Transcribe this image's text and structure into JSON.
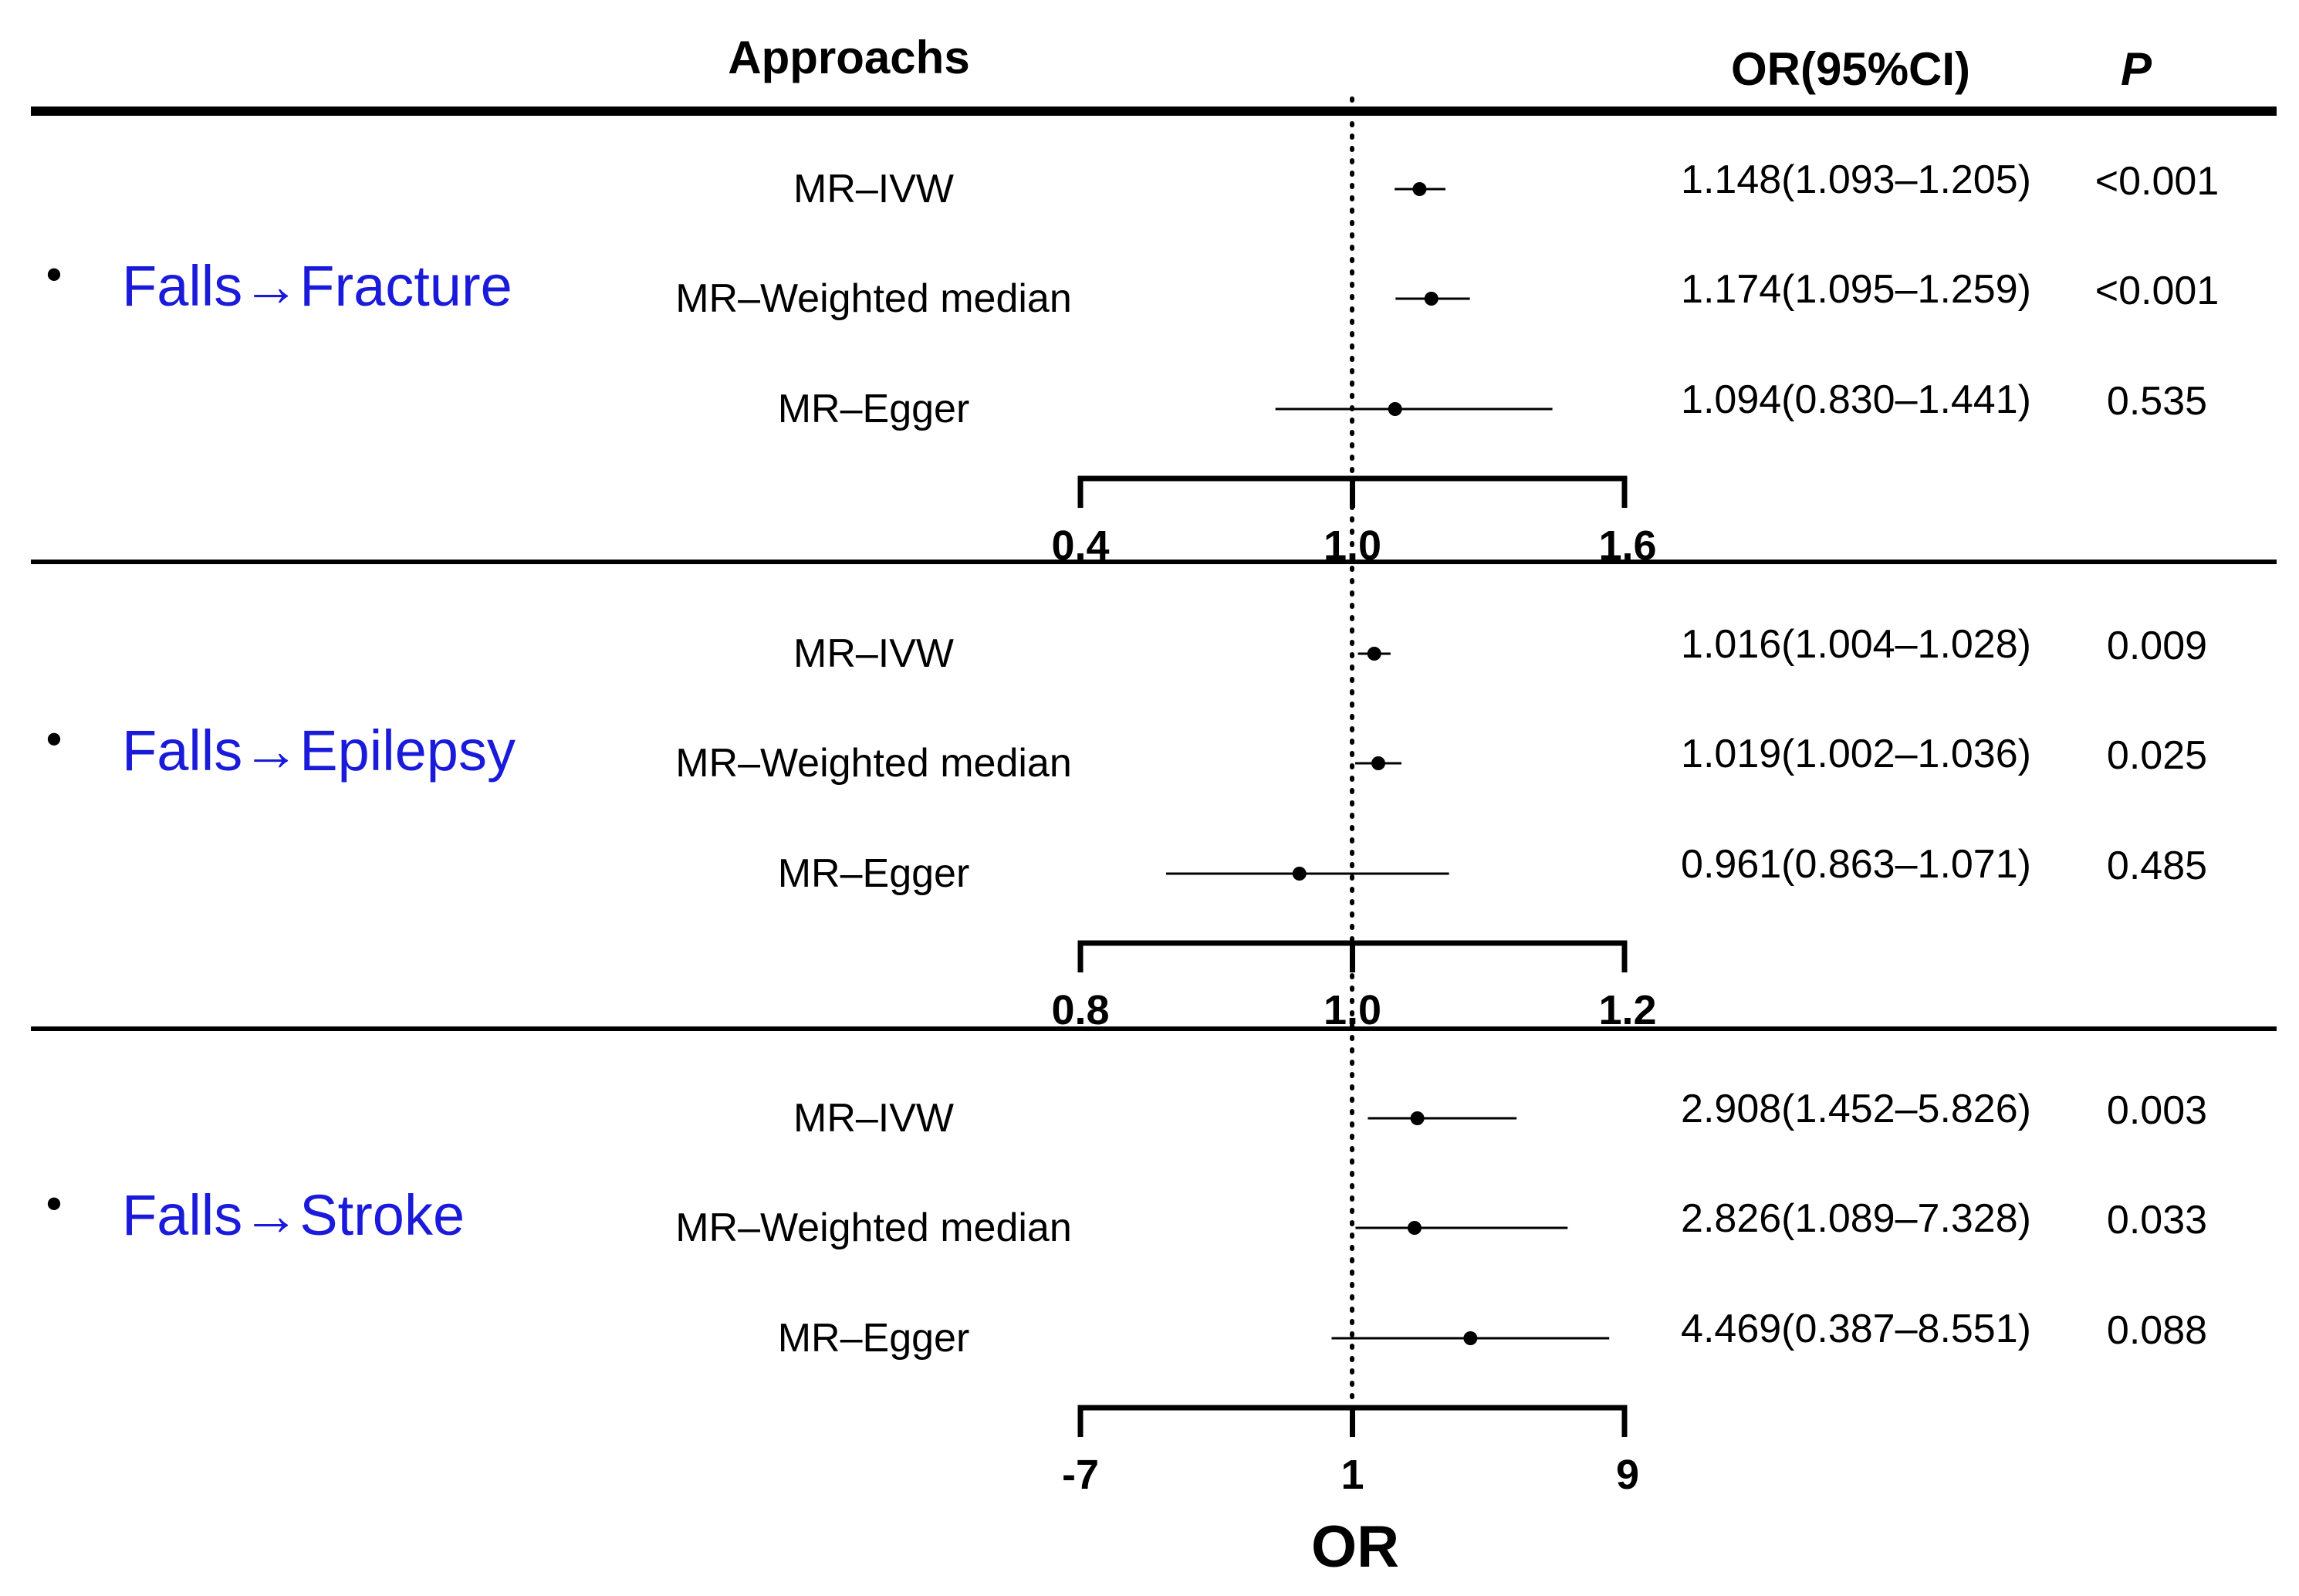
{
  "chart_data": {
    "type": "forest",
    "headers": {
      "approaches": "Approachs",
      "or_ci": "OR(95%CI)",
      "p": "P"
    },
    "xlabel": "OR",
    "colors": {
      "group_label": "#1a1adb",
      "ink": "#000000"
    },
    "groups": [
      {
        "label": "Falls→Fracture",
        "axis": {
          "min": 0.4,
          "max": 1.6,
          "ticks": [
            "0.4",
            "1.0",
            "1.6"
          ],
          "reference": 1.0
        },
        "rows": [
          {
            "method": "MR–IVW",
            "or": 1.148,
            "lower": 1.093,
            "upper": 1.205,
            "or_text": "1.148(1.093–1.205)",
            "p_text": "<0.001"
          },
          {
            "method": "MR–Weighted median",
            "or": 1.174,
            "lower": 1.095,
            "upper": 1.259,
            "or_text": "1.174(1.095–1.259)",
            "p_text": "<0.001"
          },
          {
            "method": "MR–Egger",
            "or": 1.094,
            "lower": 0.83,
            "upper": 1.441,
            "or_text": "1.094(0.830–1.441)",
            "p_text": "0.535"
          }
        ]
      },
      {
        "label": "Falls→Epilepsy",
        "axis": {
          "min": 0.8,
          "max": 1.2,
          "ticks": [
            "0.8",
            "1.0",
            "1.2"
          ],
          "reference": 1.0
        },
        "rows": [
          {
            "method": "MR–IVW",
            "or": 1.016,
            "lower": 1.004,
            "upper": 1.028,
            "or_text": "1.016(1.004–1.028)",
            "p_text": "0.009"
          },
          {
            "method": "MR–Weighted median",
            "or": 1.019,
            "lower": 1.002,
            "upper": 1.036,
            "or_text": "1.019(1.002–1.036)",
            "p_text": "0.025"
          },
          {
            "method": "MR–Egger",
            "or": 0.961,
            "lower": 0.863,
            "upper": 1.071,
            "or_text": "0.961(0.863–1.071)",
            "p_text": "0.485"
          }
        ]
      },
      {
        "label": "Falls→Stroke",
        "axis": {
          "min": -7,
          "max": 9,
          "ticks": [
            "-7",
            "1",
            "9"
          ],
          "reference": 1
        },
        "rows": [
          {
            "method": "MR–IVW",
            "or": 2.908,
            "lower": 1.452,
            "upper": 5.826,
            "or_text": "2.908(1.452–5.826)",
            "p_text": "0.003"
          },
          {
            "method": "MR–Weighted median",
            "or": 2.826,
            "lower": 1.089,
            "upper": 7.328,
            "or_text": "2.826(1.089–7.328)",
            "p_text": "0.033"
          },
          {
            "method": "MR–Egger",
            "or": 4.469,
            "lower": 0.387,
            "upper": 8.551,
            "or_text": "4.469(0.387–8.551)",
            "p_text": "0.088"
          }
        ]
      }
    ]
  }
}
